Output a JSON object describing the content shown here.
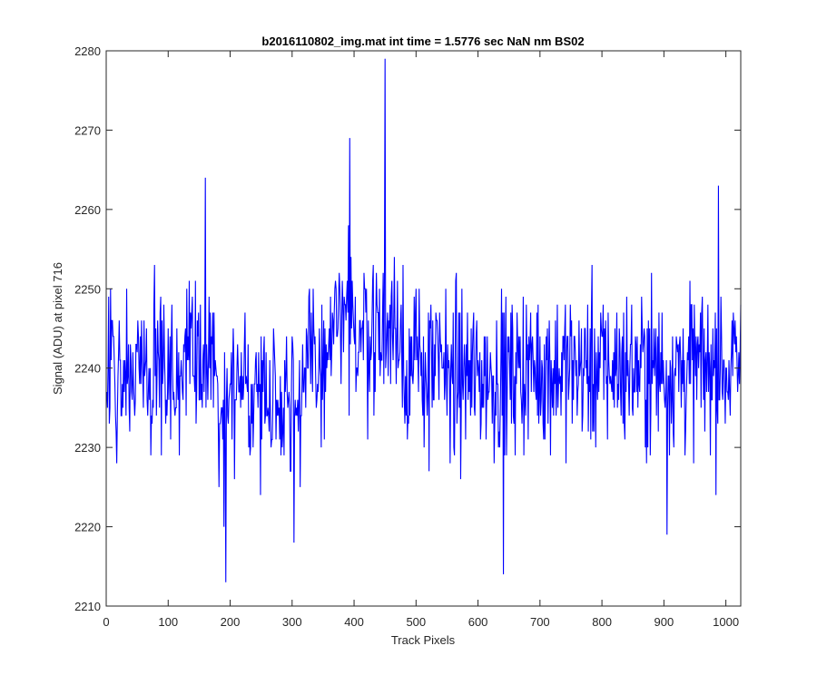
{
  "chart_data": {
    "type": "line",
    "title": "b2016110802_img.mat int time = 1.5776 sec  NaN nm BS02",
    "xlabel": "Track Pixels",
    "ylabel": "Signal (ADU) at pixel 716",
    "xlim": [
      0,
      1024
    ],
    "ylim": [
      2210,
      2280
    ],
    "xticks": [
      0,
      100,
      200,
      300,
      400,
      500,
      600,
      700,
      800,
      900,
      1000
    ],
    "yticks": [
      2210,
      2220,
      2230,
      2240,
      2250,
      2260,
      2270,
      2280
    ],
    "grid": false,
    "series": [
      {
        "color": "#0000ff",
        "x_start": 1,
        "x_step": 1,
        "n_points": 1024,
        "mean": 2240,
        "approx_std": 5,
        "notable_points": [
          {
            "x": 160,
            "y": 2264
          },
          {
            "x": 193,
            "y": 2213
          },
          {
            "x": 190,
            "y": 2220
          },
          {
            "x": 303,
            "y": 2218
          },
          {
            "x": 393,
            "y": 2269
          },
          {
            "x": 450,
            "y": 2279
          },
          {
            "x": 641,
            "y": 2214
          },
          {
            "x": 905,
            "y": 2219
          },
          {
            "x": 988,
            "y": 2263
          }
        ]
      }
    ]
  }
}
